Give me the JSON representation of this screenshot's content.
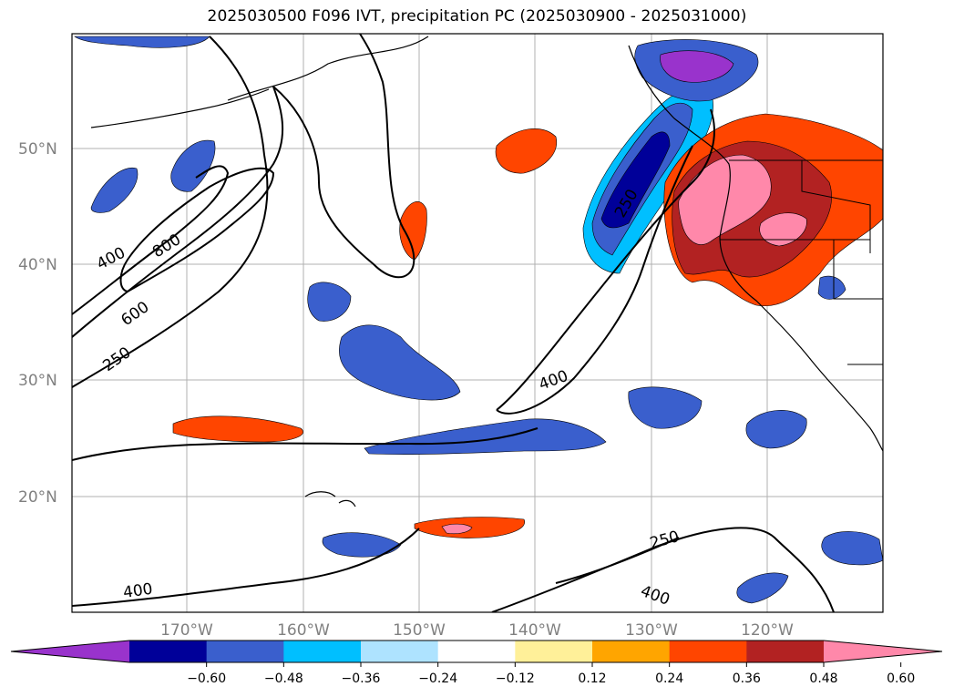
{
  "title": "2025030500 F096 IVT, precipitation PC (2025030900 - 2025031000)",
  "lat_labels": [
    "50°N",
    "40°N",
    "30°N",
    "20°N"
  ],
  "lon_labels": [
    "170°W",
    "160°W",
    "150°W",
    "140°W",
    "130°W",
    "120°W"
  ],
  "contour_labels": [
    "400",
    "800",
    "600",
    "250",
    "250",
    "400",
    "400",
    "250",
    "400"
  ],
  "colorbar": {
    "colors": [
      "#9933cc",
      "#000099",
      "#3a5fcd",
      "#00bfff",
      "#aee3ff",
      "#ffffff",
      "#fff099",
      "#ffa500",
      "#ff4500",
      "#b22222",
      "#ff88aa"
    ],
    "tick_labels": [
      "−0.60",
      "−0.48",
      "−0.36",
      "−0.24",
      "−0.12",
      "0.12",
      "0.24",
      "0.36",
      "0.48",
      "0.60"
    ]
  }
}
